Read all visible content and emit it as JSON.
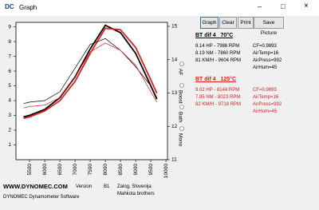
{
  "window": {
    "icon": "DC",
    "title": "Graph"
  },
  "buttons": [
    "Graph",
    "Clear",
    "Print",
    "Save Picture"
  ],
  "chart_data": {
    "type": "line",
    "x": [
      5300,
      5500,
      6000,
      6500,
      7000,
      7500,
      8000,
      8500,
      9000,
      9500,
      9700
    ],
    "xlim": [
      5050,
      10050
    ],
    "xticks": [
      5500,
      6000,
      6500,
      7000,
      7500,
      8000,
      8500,
      9000,
      9500,
      10000
    ],
    "ylim": [
      0,
      9.3
    ],
    "yticks": [
      1,
      2,
      3,
      4,
      5,
      6,
      7,
      8,
      9
    ],
    "y2lim": [
      11,
      15.12
    ],
    "y2ticks": [
      11,
      12,
      13,
      14,
      15
    ],
    "channels": [
      "AF",
      "Boost",
      "Bath",
      "Mono"
    ],
    "series": [
      {
        "color": "#000000",
        "width": 1.8,
        "values": [
          2.9,
          3.0,
          3.4,
          4.2,
          5.6,
          7.5,
          9.1,
          8.6,
          7.2,
          5.0,
          4.1
        ]
      },
      {
        "color": "#e02020",
        "width": 1.8,
        "values": [
          2.8,
          2.9,
          3.3,
          4.0,
          5.3,
          7.2,
          8.9,
          8.8,
          7.6,
          5.4,
          4.5
        ]
      },
      {
        "color": "#000000",
        "width": 0.7,
        "values": [
          3.8,
          3.9,
          4.0,
          4.6,
          6.2,
          7.8,
          8.2,
          7.4,
          6.3,
          5.0,
          4.2
        ]
      },
      {
        "color": "#e02020",
        "width": 0.7,
        "values": [
          3.5,
          3.6,
          3.7,
          4.2,
          5.6,
          7.3,
          7.9,
          7.4,
          6.4,
          4.6,
          3.9
        ]
      }
    ]
  },
  "runs": [
    {
      "title": "BT dif 4   70°C",
      "color": "#000000",
      "results": [
        "9.14 HP - 7986 RPM",
        "8.19 NM - 7860 RPM",
        "81 KM/H - 9604 RPM"
      ],
      "conditions": [
        "CF=0.9893",
        "AirTemp=16",
        "AirPress=992",
        "AirHum=45"
      ]
    },
    {
      "title": "BT dif 4   125°C",
      "color": "#e02020",
      "results": [
        "9.02 HP - 8144 RPM",
        "7.95 NM - 8023 RPM",
        "82 KM/H - 9718 RPM"
      ],
      "conditions": [
        "CF=0.9893",
        "AirTemp=16",
        "AirPress=992",
        "AirHum=45"
      ]
    }
  ],
  "footer": {
    "website": "WWW.DYNOMEC.COM",
    "version_label": "Version",
    "version": "B1",
    "location": "Zalog, Slovenija",
    "authors": "Mahkota brothers",
    "software": "DYNOMEC Dynamometer Software"
  }
}
